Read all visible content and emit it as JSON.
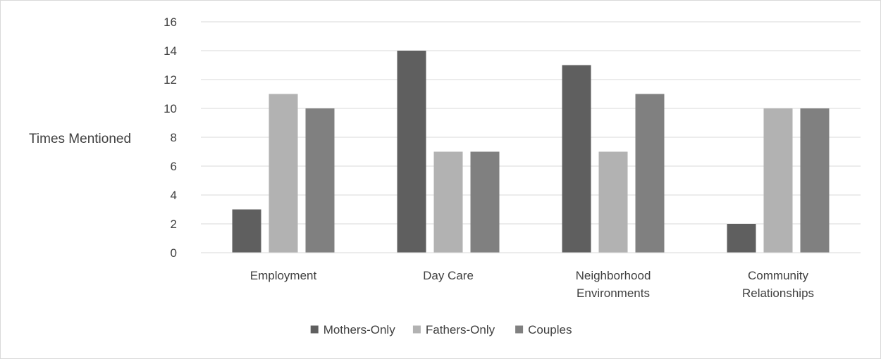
{
  "chart_data": {
    "type": "bar",
    "title": "",
    "xlabel": "",
    "ylabel": "Times Mentioned",
    "categories": [
      [
        "Employment"
      ],
      [
        "Day Care"
      ],
      [
        "Neighborhood",
        "Environments"
      ],
      [
        "Community",
        "Relationships"
      ]
    ],
    "series": [
      {
        "name": "Mothers-Only",
        "color": "#5f5f5f",
        "values": [
          3,
          14,
          13,
          2
        ]
      },
      {
        "name": "Fathers-Only",
        "color": "#b2b2b2",
        "values": [
          11,
          7,
          7,
          10
        ]
      },
      {
        "name": "Couples",
        "color": "#808080",
        "values": [
          10,
          7,
          11,
          10
        ]
      }
    ],
    "ylim": [
      0,
      16
    ],
    "yticks": [
      0,
      2,
      4,
      6,
      8,
      10,
      12,
      14,
      16
    ],
    "grid": true,
    "legend": "bottom-center"
  }
}
